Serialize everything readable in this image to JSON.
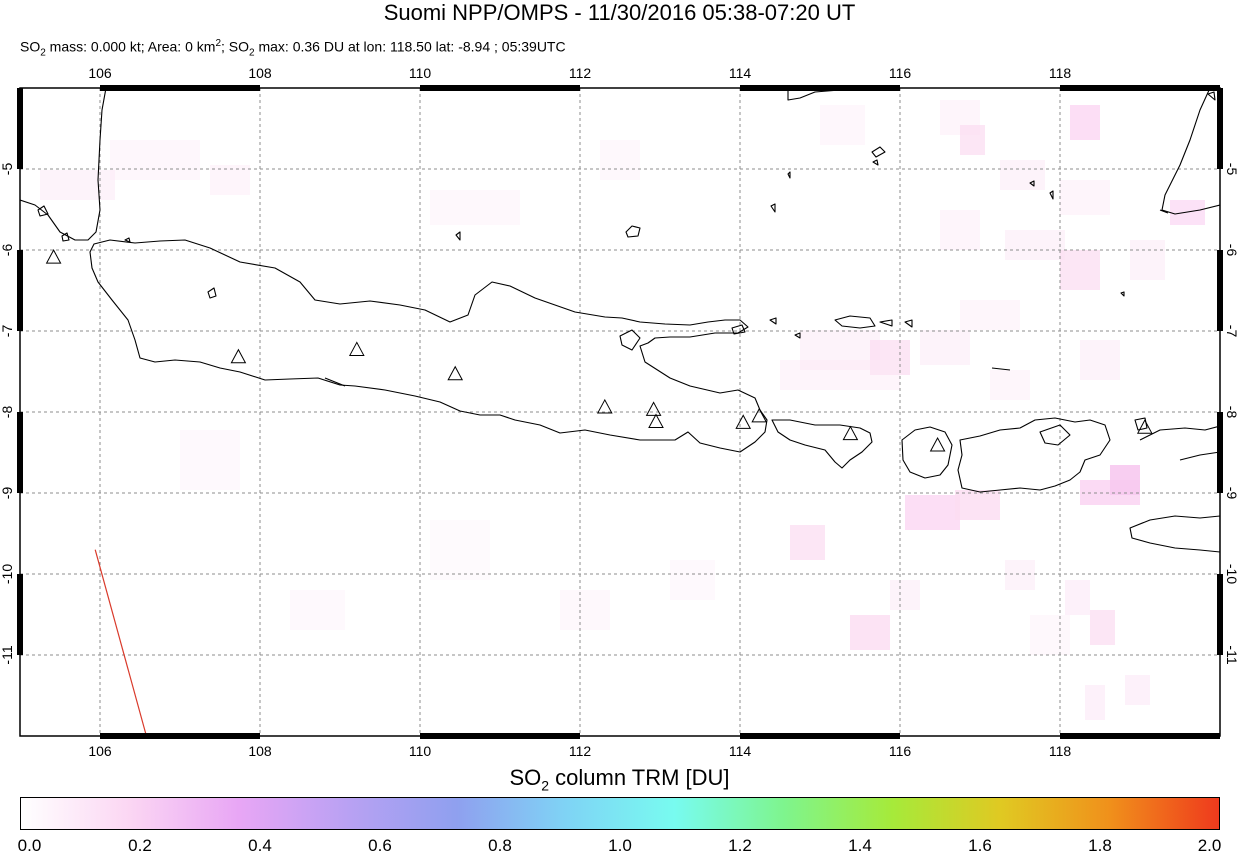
{
  "title": "Suomi NPP/OMPS - 11/30/2016 05:38-07:20 UT",
  "subtitle": {
    "p1": "SO",
    "sub1": "2",
    "p2": " mass: 0.000 kt; Area: 0 km",
    "sup": "2",
    "p3": "; SO",
    "sub2": "2",
    "p4": " max: 0.36 DU at lon: 118.50 lat: -8.94 ; 05:39UTC"
  },
  "map": {
    "lon_range": [
      105,
      120
    ],
    "lat_range": [
      -12,
      -4
    ],
    "lon_ticks": [
      "106",
      "108",
      "110",
      "112",
      "114",
      "116",
      "118"
    ],
    "lat_ticks": [
      "-5",
      "-6",
      "-7",
      "-8",
      "-9",
      "-10",
      "-11"
    ],
    "volcanoes": [
      {
        "lon": 105.42,
        "lat": -6.1
      },
      {
        "lon": 107.73,
        "lat": -7.33
      },
      {
        "lon": 109.21,
        "lat": -7.24
      },
      {
        "lon": 110.44,
        "lat": -7.54
      },
      {
        "lon": 112.31,
        "lat": -7.95
      },
      {
        "lon": 112.92,
        "lat": -7.98
      },
      {
        "lon": 112.95,
        "lat": -8.13
      },
      {
        "lon": 114.04,
        "lat": -8.14
      },
      {
        "lon": 114.24,
        "lat": -8.06
      },
      {
        "lon": 115.38,
        "lat": -8.28
      },
      {
        "lon": 116.47,
        "lat": -8.42
      },
      {
        "lon": 119.06,
        "lat": -8.2
      }
    ],
    "track": {
      "lon": [
        105.94,
        106.58
      ],
      "lat": [
        -9.7,
        -12.0
      ]
    },
    "grid": true,
    "colors": {
      "coast": "#000000",
      "grid": "#8c8c8c",
      "track": "#d93a2b",
      "frame": "#000000"
    }
  },
  "colorbar": {
    "title_p1": "SO",
    "title_sub": "2",
    "title_p2": " column TRM [DU]",
    "ticks": [
      "0.0",
      "0.2",
      "0.4",
      "0.6",
      "0.8",
      "1.0",
      "1.2",
      "1.4",
      "1.6",
      "1.8",
      "2.0"
    ],
    "range": [
      0,
      2
    ],
    "colors": [
      "#ffffff",
      "#fbd6f3",
      "#e8a6f5",
      "#b9a1f3",
      "#8fa0ef",
      "#7fd3f5",
      "#78fbf0",
      "#7ef58e",
      "#a6ea3a",
      "#e0c922",
      "#f0901b",
      "#ef3a1d"
    ]
  }
}
